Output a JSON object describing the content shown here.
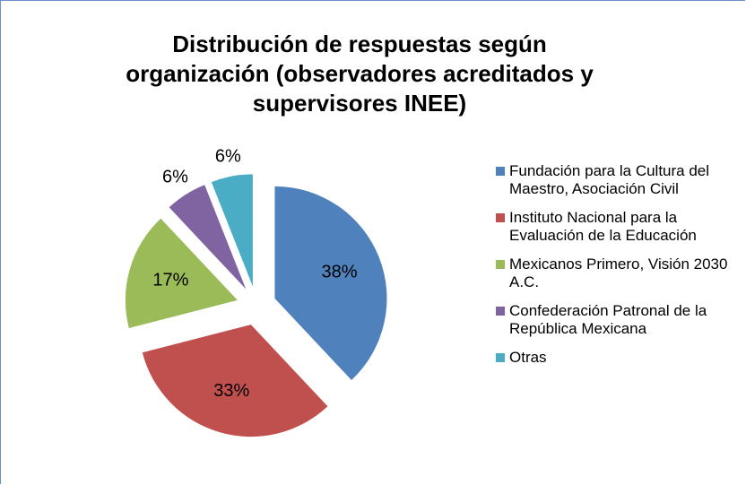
{
  "chart_data": {
    "type": "pie",
    "title": "Distribución de respuestas según organización (observadores acreditados y supervisores INEE)",
    "categories": [
      "Fundación para la Cultura del Maestro, Asociación Civil",
      "Instituto Nacional para la Evaluación de la Educación",
      "Mexicanos Primero, Visión 2030 A.C.",
      "Confederación Patronal de la República Mexicana",
      "Otras"
    ],
    "values": [
      38,
      33,
      17,
      6,
      6
    ],
    "value_labels": [
      "38%",
      "33%",
      "17%",
      "6%",
      "6%"
    ],
    "colors": [
      "#4f81bd",
      "#c0504d",
      "#9bbb59",
      "#8064a2",
      "#4bacc6"
    ],
    "legend": "right"
  }
}
